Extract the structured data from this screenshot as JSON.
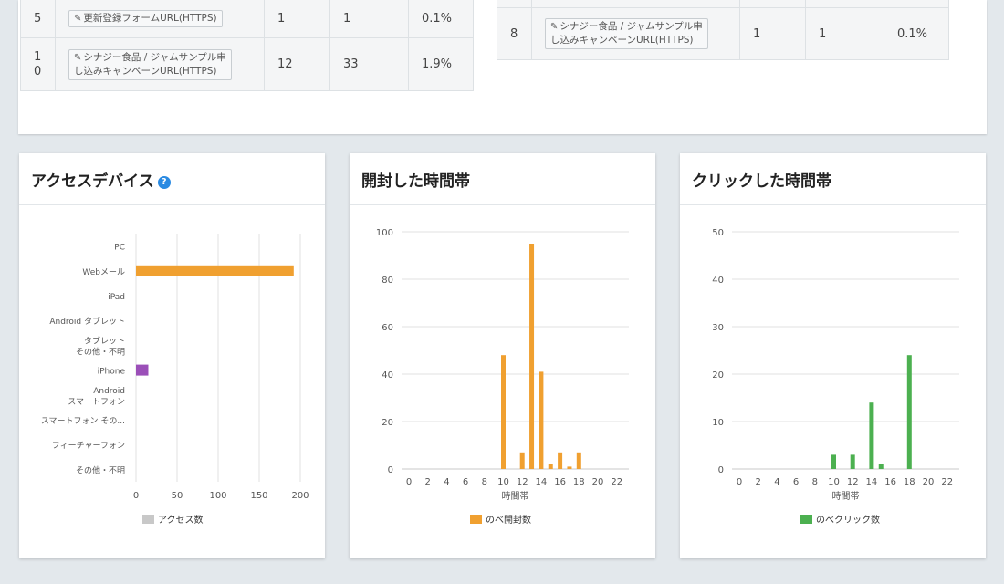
{
  "table_left": {
    "rows": [
      {
        "no": "5",
        "label": "更新登録フォームURL(HTTPS)",
        "c1": "1",
        "c2": "1",
        "pct": "0.1%"
      },
      {
        "no_line1": "1",
        "no_line2": "0",
        "label_line1": "シナジー食品 / ジャムサンプル申",
        "label_line2": "し込みキャンペーンURL(HTTPS)",
        "c1": "12",
        "c2": "33",
        "pct": "1.9%"
      }
    ]
  },
  "table_right": {
    "rows": [
      {
        "no": "8",
        "label_line1": "シナジー食品 / ジャムサンプル申",
        "label_line2": "し込みキャンペーンURL(HTTPS)",
        "c1": "1",
        "c2": "1",
        "pct": "0.1%"
      }
    ]
  },
  "cards": {
    "device": {
      "title": "アクセスデバイス",
      "help_icon": "question-circle-icon"
    },
    "open": {
      "title": "開封した時間帯"
    },
    "click": {
      "title": "クリックした時間帯"
    }
  },
  "colors": {
    "orange": "#f0a030",
    "purple": "#9b4fb8",
    "green": "#4cb050",
    "legend_gray": "#c8c8c8",
    "grid": "#e2e2e2"
  },
  "chart_data": [
    {
      "type": "bar",
      "orientation": "horizontal",
      "categories": [
        "PC",
        "Webメール",
        "iPad",
        "Android タブレット",
        "タブレット\nその他・不明",
        "iPhone",
        "Android\nスマートフォン",
        "スマートフォン その...",
        "フィーチャーフォン",
        "その他・不明"
      ],
      "values": [
        0,
        192,
        0,
        0,
        0,
        15,
        0,
        0,
        0,
        0
      ],
      "bar_colors": [
        "#f0a030",
        "#f0a030",
        "#f0a030",
        "#f0a030",
        "#f0a030",
        "#9b4fb8",
        "#f0a030",
        "#f0a030",
        "#f0a030",
        "#f0a030"
      ],
      "xticks": [
        0,
        50,
        100,
        150,
        200
      ],
      "xlim": [
        0,
        200
      ],
      "legend": "アクセス数",
      "grid": true
    },
    {
      "type": "bar",
      "x": [
        0,
        1,
        2,
        3,
        4,
        5,
        6,
        7,
        8,
        9,
        10,
        11,
        12,
        13,
        14,
        15,
        16,
        17,
        18,
        19,
        20,
        21,
        22,
        23
      ],
      "values": [
        0,
        0,
        0,
        0,
        0,
        0,
        0,
        0,
        0,
        0,
        48,
        0,
        7,
        95,
        41,
        2,
        7,
        1,
        7,
        0,
        0,
        0,
        0,
        0
      ],
      "xticks": [
        0,
        2,
        4,
        6,
        8,
        10,
        12,
        14,
        16,
        18,
        20,
        22
      ],
      "yticks": [
        0,
        20,
        40,
        60,
        80,
        100
      ],
      "ylim": [
        0,
        100
      ],
      "xlabel": "時間帯",
      "legend": "のべ開封数",
      "grid": true
    },
    {
      "type": "bar",
      "x": [
        0,
        1,
        2,
        3,
        4,
        5,
        6,
        7,
        8,
        9,
        10,
        11,
        12,
        13,
        14,
        15,
        16,
        17,
        18,
        19,
        20,
        21,
        22,
        23
      ],
      "values": [
        0,
        0,
        0,
        0,
        0,
        0,
        0,
        0,
        0,
        0,
        3,
        0,
        3,
        0,
        14,
        1,
        0,
        0,
        24,
        0,
        0,
        0,
        0,
        0
      ],
      "xticks": [
        0,
        2,
        4,
        6,
        8,
        10,
        12,
        14,
        16,
        18,
        20,
        22
      ],
      "yticks": [
        0,
        10,
        20,
        30,
        40,
        50
      ],
      "ylim": [
        0,
        50
      ],
      "xlabel": "時間帯",
      "legend": "のべクリック数",
      "grid": true
    }
  ]
}
